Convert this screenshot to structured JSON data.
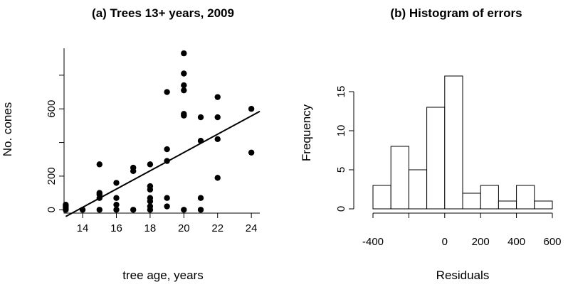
{
  "chart_data": [
    {
      "type": "scatter",
      "title": "(a) Trees 13+ years, 2009",
      "xlabel": "tree age, years",
      "ylabel": "No. cones",
      "xlim": [
        12.9,
        24.5
      ],
      "ylim": [
        -20,
        960
      ],
      "x_ticks": [
        14,
        16,
        18,
        20,
        22,
        24
      ],
      "y_ticks": [
        0,
        200,
        600
      ],
      "points": [
        {
          "x": 13,
          "y": 0
        },
        {
          "x": 13,
          "y": 10
        },
        {
          "x": 13,
          "y": 20
        },
        {
          "x": 13,
          "y": 30
        },
        {
          "x": 14,
          "y": 0
        },
        {
          "x": 15,
          "y": 0
        },
        {
          "x": 15,
          "y": 70
        },
        {
          "x": 15,
          "y": 90
        },
        {
          "x": 15,
          "y": 100
        },
        {
          "x": 15,
          "y": 270
        },
        {
          "x": 16,
          "y": 0
        },
        {
          "x": 16,
          "y": 30
        },
        {
          "x": 16,
          "y": 70
        },
        {
          "x": 16,
          "y": 160
        },
        {
          "x": 17,
          "y": 0
        },
        {
          "x": 17,
          "y": 230
        },
        {
          "x": 17,
          "y": 250
        },
        {
          "x": 18,
          "y": 0
        },
        {
          "x": 18,
          "y": 20
        },
        {
          "x": 18,
          "y": 50
        },
        {
          "x": 18,
          "y": 70
        },
        {
          "x": 18,
          "y": 120
        },
        {
          "x": 18,
          "y": 140
        },
        {
          "x": 18,
          "y": 270
        },
        {
          "x": 19,
          "y": 20
        },
        {
          "x": 19,
          "y": 70
        },
        {
          "x": 19,
          "y": 290
        },
        {
          "x": 19,
          "y": 360
        },
        {
          "x": 19,
          "y": 700
        },
        {
          "x": 20,
          "y": 0
        },
        {
          "x": 20,
          "y": 560
        },
        {
          "x": 20,
          "y": 570
        },
        {
          "x": 20,
          "y": 710
        },
        {
          "x": 20,
          "y": 740
        },
        {
          "x": 20,
          "y": 810
        },
        {
          "x": 20,
          "y": 930
        },
        {
          "x": 21,
          "y": 0
        },
        {
          "x": 21,
          "y": 70
        },
        {
          "x": 21,
          "y": 410
        },
        {
          "x": 21,
          "y": 550
        },
        {
          "x": 22,
          "y": 190
        },
        {
          "x": 22,
          "y": 420
        },
        {
          "x": 22,
          "y": 550
        },
        {
          "x": 22,
          "y": 670
        },
        {
          "x": 24,
          "y": 340
        },
        {
          "x": 24,
          "y": 600
        }
      ],
      "fit_line": {
        "x": [
          13,
          24.5
        ],
        "y": [
          -40,
          585
        ]
      }
    },
    {
      "type": "histogram",
      "title": "(b) Histogram of errors",
      "xlabel": "Residuals",
      "ylabel": "Frequency",
      "bin_edges": [
        -400,
        -300,
        -200,
        -100,
        0,
        100,
        200,
        300,
        400,
        500,
        600
      ],
      "counts": [
        3,
        8,
        5,
        13,
        17,
        2,
        3,
        1,
        3,
        1
      ],
      "xlim": [
        -400,
        600
      ],
      "ylim": [
        0,
        17
      ],
      "x_ticks": [
        -400,
        0,
        200,
        400,
        600
      ],
      "y_ticks": [
        0,
        5,
        10,
        15
      ]
    }
  ]
}
